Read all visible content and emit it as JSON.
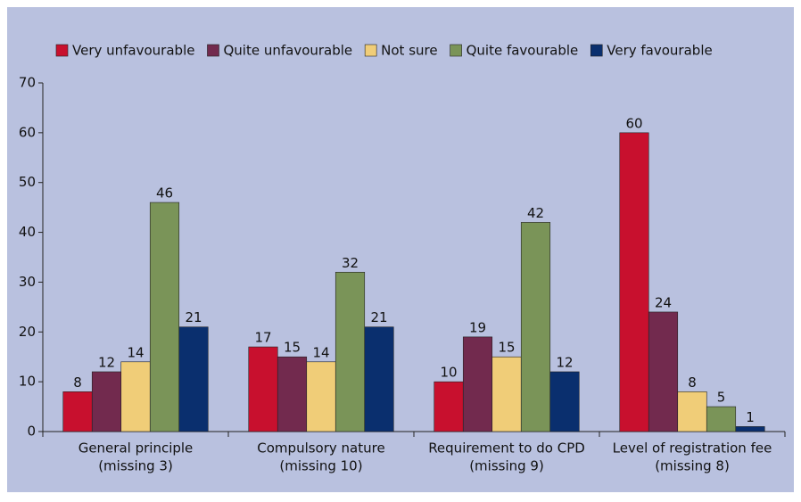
{
  "chart_data": {
    "type": "bar",
    "categories": [
      [
        "General principle",
        "(missing 3)"
      ],
      [
        "Compulsory nature",
        "(missing 10)"
      ],
      [
        "Requirement to do CPD",
        "(missing 9)"
      ],
      [
        "Level of registration fee",
        "(missing 8)"
      ]
    ],
    "series": [
      {
        "name": "Very unfavourable",
        "color": "#c8102e",
        "values": [
          8,
          17,
          10,
          60
        ]
      },
      {
        "name": "Quite unfavourable",
        "color": "#722a4e",
        "values": [
          12,
          15,
          19,
          24
        ]
      },
      {
        "name": "Not sure",
        "color": "#f0cd78",
        "values": [
          14,
          14,
          15,
          8
        ]
      },
      {
        "name": "Quite favourable",
        "color": "#7a9458",
        "values": [
          46,
          32,
          42,
          5
        ]
      },
      {
        "name": "Very favourable",
        "color": "#0a2f6e",
        "values": [
          21,
          21,
          12,
          1
        ]
      }
    ],
    "ylim": [
      0,
      70
    ],
    "yticks": [
      0,
      10,
      20,
      30,
      40,
      50,
      60,
      70
    ],
    "legend": "top"
  }
}
